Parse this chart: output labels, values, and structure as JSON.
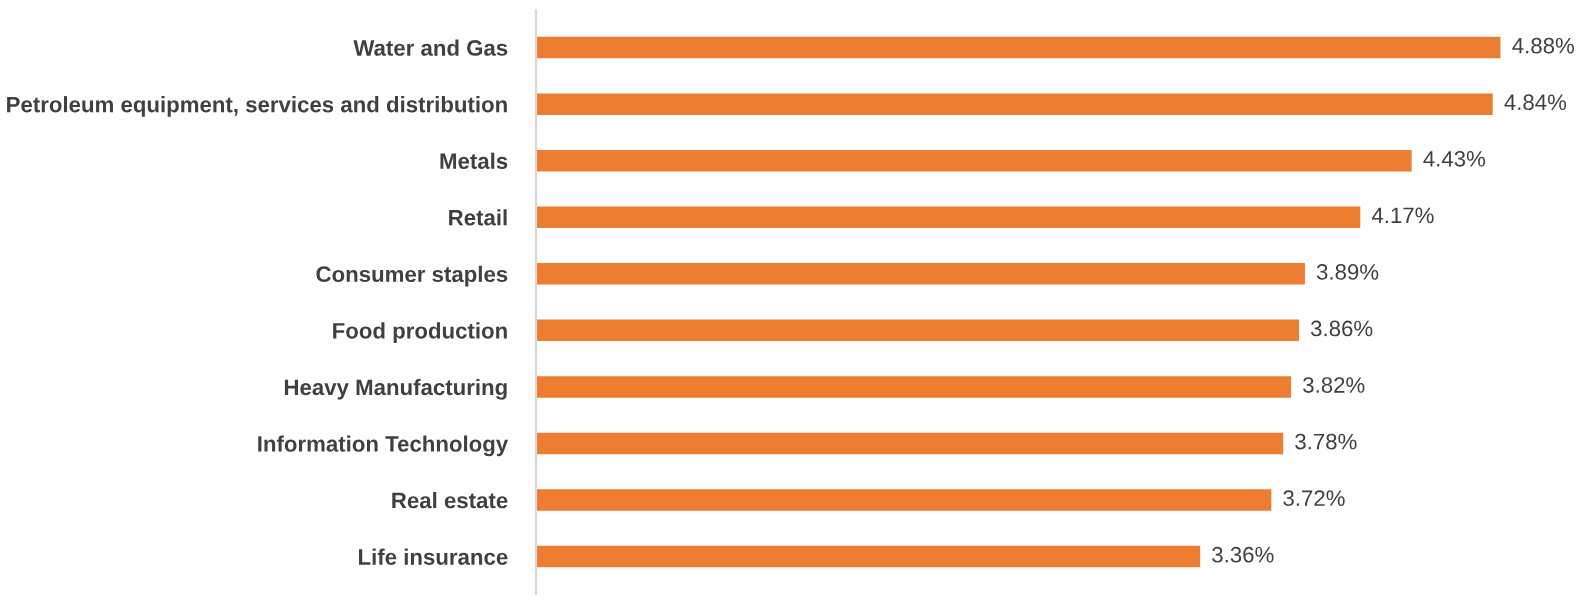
{
  "chart_data": {
    "type": "bar",
    "orientation": "horizontal",
    "categories": [
      "Water and Gas",
      "Petroleum equipment, services and distribution",
      "Metals",
      "Retail",
      "Consumer staples",
      "Food production",
      "Heavy Manufacturing",
      "Information Technology",
      "Real estate",
      "Life insurance"
    ],
    "values": [
      4.88,
      4.84,
      4.43,
      4.17,
      3.89,
      3.86,
      3.82,
      3.78,
      3.72,
      3.36
    ],
    "value_labels": [
      "4.88%",
      "4.84%",
      "4.43%",
      "4.17%",
      "3.89%",
      "3.86%",
      "3.82%",
      "3.78%",
      "3.72%",
      "3.36%"
    ],
    "color": "#ed7d31",
    "tick_labels": "y",
    "grid": false,
    "legend": false
  }
}
